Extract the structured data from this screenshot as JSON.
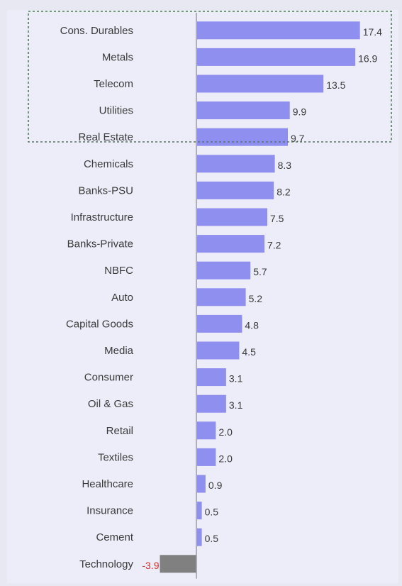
{
  "chart_data": {
    "type": "bar",
    "orientation": "horizontal",
    "categories": [
      "Cons. Durables",
      "Metals",
      "Telecom",
      "Utilities",
      "Real Estate",
      "Chemicals",
      "Banks-PSU",
      "Infrastructure",
      "Banks-Private",
      "NBFC",
      "Auto",
      "Capital Goods",
      "Media",
      "Consumer",
      "Oil & Gas",
      "Retail",
      "Textiles",
      "Healthcare",
      "Insurance",
      "Cement",
      "Technology"
    ],
    "values": [
      17.4,
      16.9,
      13.5,
      9.9,
      9.7,
      8.3,
      8.2,
      7.5,
      7.2,
      5.7,
      5.2,
      4.8,
      4.5,
      3.1,
      3.1,
      2.0,
      2.0,
      0.9,
      0.5,
      0.5,
      -3.9
    ],
    "value_labels": [
      "17.4",
      "16.9",
      "13.5",
      "9.9",
      "9.7",
      "8.3",
      "8.2",
      "7.5",
      "7.2",
      "5.7",
      "5.2",
      "4.8",
      "4.5",
      "3.1",
      "3.1",
      "2.0",
      "2.0",
      "0.9",
      "0.5",
      "0.5",
      "-3.9"
    ],
    "title": "",
    "xlabel": "",
    "ylabel": "",
    "xlim": [
      -4.5,
      18
    ],
    "grid": false,
    "legend": "none",
    "highlight_box_categories": [
      "Cons. Durables",
      "Metals",
      "Telecom",
      "Utilities",
      "Real Estate"
    ],
    "colors": {
      "positive_bar": "#8f8ff0",
      "negative_bar": "#808080",
      "negative_label": "#d9302c",
      "background": "#e8e8f2",
      "plot_background": "#ededfa",
      "highlight_box": "#4f7a5a",
      "axis": "#9a9aa8"
    }
  }
}
